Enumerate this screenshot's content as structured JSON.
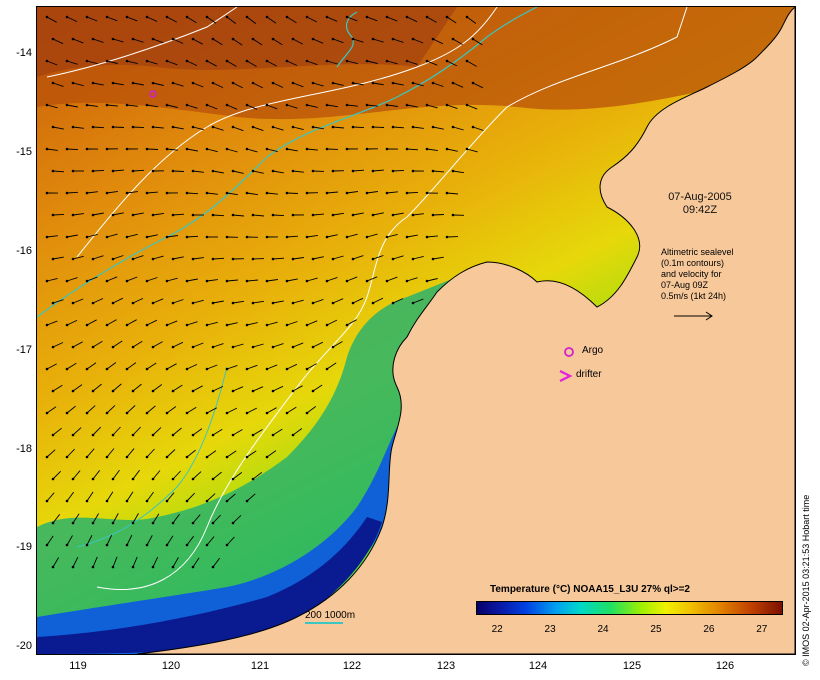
{
  "map": {
    "timestamp_line1": "07-Aug-2005",
    "timestamp_line2": "09:42Z",
    "lat_labels": [
      "-14",
      "-15",
      "-16",
      "-17",
      "-18",
      "-19",
      "-20"
    ],
    "lon_labels": [
      "119",
      "120",
      "121",
      "122",
      "123",
      "124",
      "125",
      "126"
    ],
    "legend_lines": [
      "Altimetric sealevel",
      "(0.1m contours)",
      "and velocity for",
      "07-Aug 09Z",
      "0.5m/s (1kt 24h)"
    ],
    "argo_label": "Argo",
    "drifter_label": "drifter",
    "colorbar_title": "Temperature (°C) NOAA15_L3U 27% ql>=2",
    "colorbar_ticks": [
      "22",
      "23",
      "24",
      "25",
      "26",
      "27"
    ],
    "colorbar_range": [
      21.6,
      27.4
    ],
    "scale_label": "200  1000m",
    "credit": "© IMOS 02-Apr-2015 03:21:53 Hobart time",
    "colors": {
      "land": "#f7c89a",
      "argo_marker": "#d020d0",
      "drifter_marker": "#e020e0",
      "isobath": "#3ac6c2",
      "sealevel_contour": "#ffffff"
    }
  }
}
